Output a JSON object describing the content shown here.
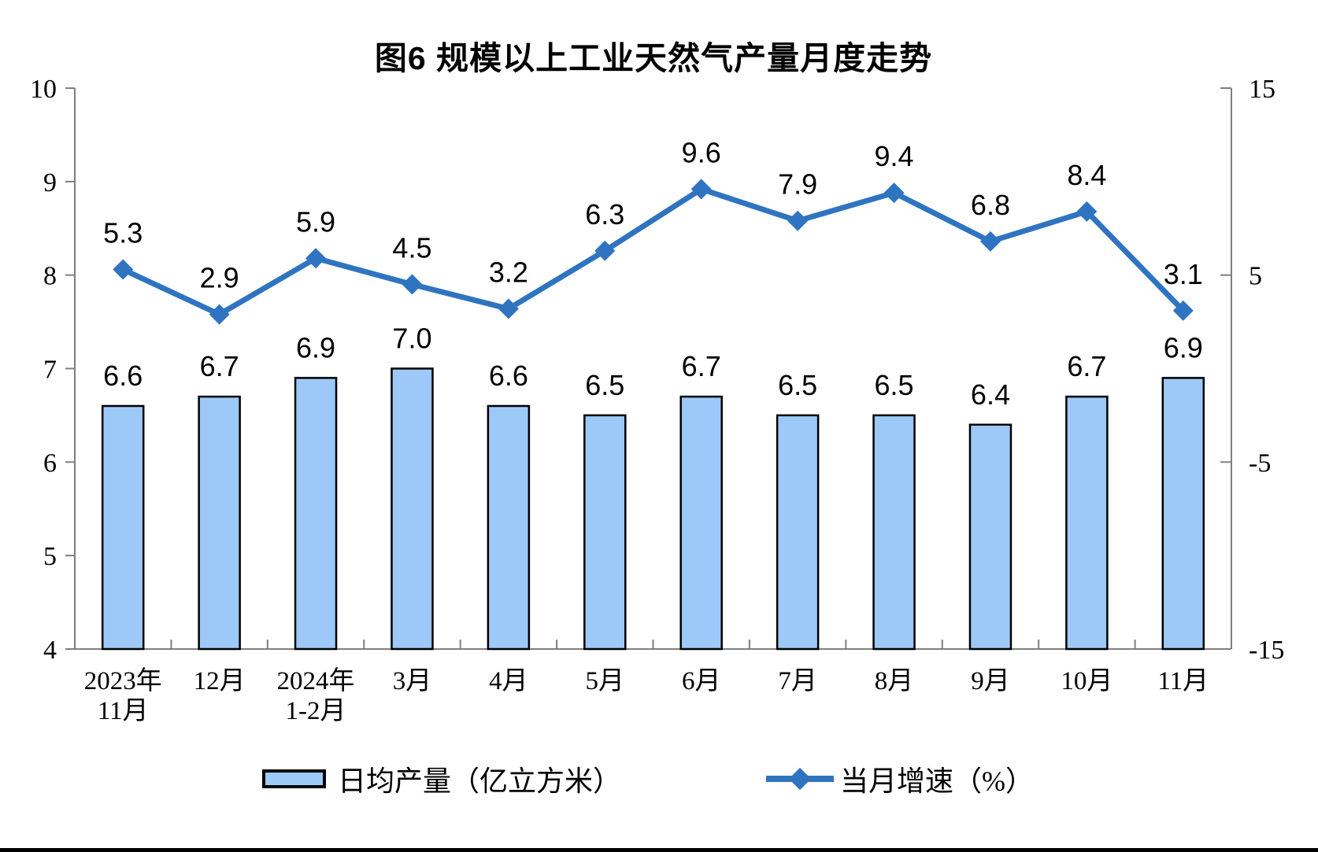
{
  "title": "图6 规模以上工业天然气产量月度走势",
  "legend": {
    "bar_label": "日均产量（亿立方米）",
    "line_label": "当月增速（%）"
  },
  "chart_data": {
    "type": "combo-bar-line",
    "title": "图6 规模以上工业天然气产量月度走势",
    "categories": [
      "2023年\n11月",
      "12月",
      "2024年\n1-2月",
      "3月",
      "4月",
      "5月",
      "6月",
      "7月",
      "8月",
      "9月",
      "10月",
      "11月"
    ],
    "series": [
      {
        "name": "日均产量（亿立方米）",
        "type": "bar",
        "axis": "left",
        "values": [
          6.6,
          6.7,
          6.9,
          7.0,
          6.6,
          6.5,
          6.7,
          6.5,
          6.5,
          6.4,
          6.7,
          6.9
        ]
      },
      {
        "name": "当月增速（%）",
        "type": "line",
        "axis": "right",
        "values": [
          5.3,
          2.9,
          5.9,
          4.5,
          3.2,
          6.3,
          9.6,
          7.9,
          9.4,
          6.8,
          8.4,
          3.1
        ]
      }
    ],
    "left_axis": {
      "min": 4,
      "max": 10,
      "ticks": [
        4,
        5,
        6,
        7,
        8,
        9,
        10
      ]
    },
    "right_axis": {
      "min": -15,
      "max": 15,
      "ticks": [
        -15,
        -5,
        5,
        15
      ]
    },
    "grid": false,
    "legend_position": "bottom",
    "data_labels": true,
    "colors": {
      "bar_fill": "#9CC9F7",
      "bar_border": "#000000",
      "line": "#2F74C0",
      "axis_line": "#7F7F7F",
      "text": "#000000"
    }
  }
}
